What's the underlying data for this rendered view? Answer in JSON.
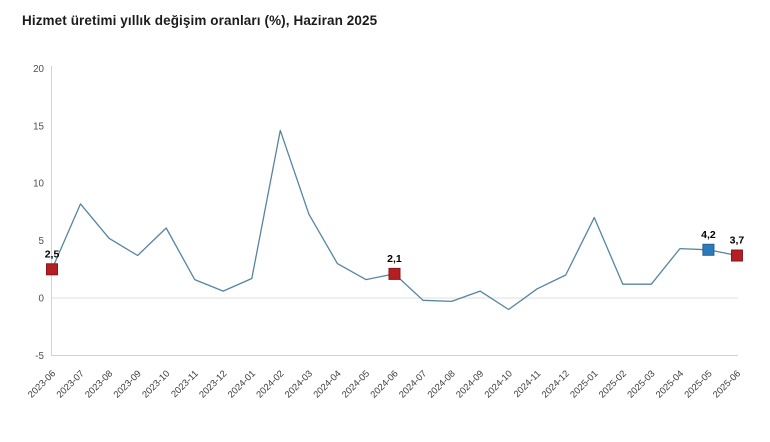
{
  "chart_data": {
    "type": "line",
    "title": "Hizmet üretimi yıllık değişim oranları (%), Haziran 2025",
    "categories": [
      "2023-06",
      "2023-07",
      "2023-08",
      "2023-09",
      "2023-10",
      "2023-11",
      "2023-12",
      "2024-01",
      "2024-02",
      "2024-03",
      "2024-04",
      "2024-05",
      "2024-06",
      "2024-07",
      "2024-08",
      "2024-09",
      "2024-10",
      "2024-11",
      "2024-12",
      "2025-01",
      "2025-02",
      "2025-03",
      "2025-04",
      "2025-05",
      "2025-06"
    ],
    "values": [
      2.5,
      8.2,
      5.2,
      3.7,
      6.1,
      1.6,
      0.6,
      1.7,
      14.6,
      7.3,
      3.0,
      1.6,
      2.1,
      -0.2,
      -0.3,
      0.6,
      -1.0,
      0.8,
      2.0,
      7.0,
      1.2,
      1.2,
      4.3,
      4.2,
      3.7
    ],
    "ylim": [
      -5,
      20
    ],
    "yticks": [
      "20",
      "15",
      "10",
      "5",
      "0",
      "-5"
    ],
    "ytick_values": [
      20,
      15,
      10,
      5,
      0,
      -5
    ],
    "grid": "zero-line-only",
    "xlabel": "",
    "ylabel": "",
    "legend": "none",
    "line_color": "#5585a2",
    "axis_color": "#d3d3d3",
    "zero_line_color": "#e5e5e5",
    "labeled_points": [
      {
        "index": 0,
        "category": "2023-06",
        "value": 2.5,
        "label": "2,5",
        "marker_color": "#b41f24",
        "marker_border": "#8a1519",
        "marker": "red-square"
      },
      {
        "index": 12,
        "category": "2024-06",
        "value": 2.1,
        "label": "2,1",
        "marker_color": "#b41f24",
        "marker_border": "#8a1519",
        "marker": "red-square"
      },
      {
        "index": 23,
        "category": "2025-05",
        "value": 4.2,
        "label": "4,2",
        "marker_color": "#2d79ba",
        "marker_border": "#1f5f97",
        "marker": "blue-square"
      },
      {
        "index": 24,
        "category": "2025-06",
        "value": 3.7,
        "label": "3,7",
        "marker_color": "#b41f24",
        "marker_border": "#8a1519",
        "marker": "red-square"
      }
    ]
  }
}
